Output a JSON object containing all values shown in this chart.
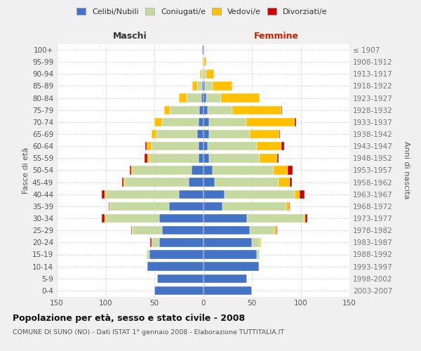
{
  "age_groups": [
    "100+",
    "95-99",
    "90-94",
    "85-89",
    "80-84",
    "75-79",
    "70-74",
    "65-69",
    "60-64",
    "55-59",
    "50-54",
    "45-49",
    "40-44",
    "35-39",
    "30-34",
    "25-29",
    "20-24",
    "15-19",
    "10-14",
    "5-9",
    "0-4"
  ],
  "birth_years": [
    "≤ 1907",
    "1908-1912",
    "1913-1917",
    "1918-1922",
    "1923-1927",
    "1928-1932",
    "1933-1937",
    "1938-1942",
    "1943-1947",
    "1948-1952",
    "1953-1957",
    "1958-1962",
    "1963-1967",
    "1968-1972",
    "1973-1977",
    "1978-1982",
    "1983-1987",
    "1988-1992",
    "1993-1997",
    "1998-2002",
    "2003-2007"
  ],
  "maschi_celibi": [
    1,
    0,
    0,
    1,
    2,
    4,
    5,
    6,
    5,
    5,
    12,
    15,
    25,
    35,
    45,
    42,
    45,
    55,
    57,
    47,
    50
  ],
  "maschi_coniugati": [
    0,
    1,
    2,
    5,
    15,
    30,
    37,
    42,
    48,
    50,
    60,
    65,
    75,
    60,
    55,
    30,
    8,
    3,
    1,
    0,
    0
  ],
  "maschi_vedovi": [
    0,
    0,
    1,
    5,
    8,
    6,
    8,
    5,
    5,
    2,
    2,
    2,
    1,
    1,
    1,
    1,
    0,
    0,
    0,
    0,
    0
  ],
  "maschi_divorziati": [
    0,
    0,
    0,
    0,
    0,
    0,
    0,
    0,
    1,
    3,
    1,
    1,
    3,
    1,
    3,
    1,
    1,
    0,
    0,
    0,
    0
  ],
  "femmine_nubili": [
    1,
    0,
    0,
    2,
    3,
    5,
    6,
    6,
    5,
    6,
    10,
    12,
    22,
    20,
    45,
    48,
    50,
    55,
    57,
    45,
    50
  ],
  "femmine_coniugate": [
    0,
    1,
    3,
    8,
    15,
    25,
    38,
    42,
    50,
    52,
    62,
    65,
    72,
    65,
    58,
    25,
    8,
    3,
    1,
    0,
    0
  ],
  "femmine_vedove": [
    0,
    2,
    8,
    20,
    40,
    50,
    50,
    30,
    25,
    18,
    15,
    12,
    5,
    3,
    2,
    2,
    1,
    0,
    0,
    0,
    0
  ],
  "femmine_divorziate": [
    0,
    0,
    0,
    0,
    0,
    1,
    1,
    1,
    3,
    1,
    5,
    2,
    5,
    1,
    2,
    1,
    0,
    0,
    0,
    0,
    0
  ],
  "color_celibi": "#4472c4",
  "color_coniugati": "#c5d9a0",
  "color_vedovi": "#ffc000",
  "color_divorziati": "#cc0000",
  "title": "Popolazione per età, sesso e stato civile - 2008",
  "subtitle": "COMUNE DI SUNO (NO) - Dati ISTAT 1° gennaio 2008 - Elaborazione TUTTITALIA.IT",
  "legend_labels": [
    "Celibi/Nubili",
    "Coniugati/e",
    "Vedovi/e",
    "Divorziati/e"
  ],
  "xlabel_left": "Maschi",
  "xlabel_right": "Femmine",
  "ylabel_left": "Fasce di età",
  "ylabel_right": "Anni di nascita",
  "xlim": 150,
  "bg_color": "#f0f0f0",
  "plot_bg": "#ffffff",
  "grid_color": "#d0d0d0"
}
